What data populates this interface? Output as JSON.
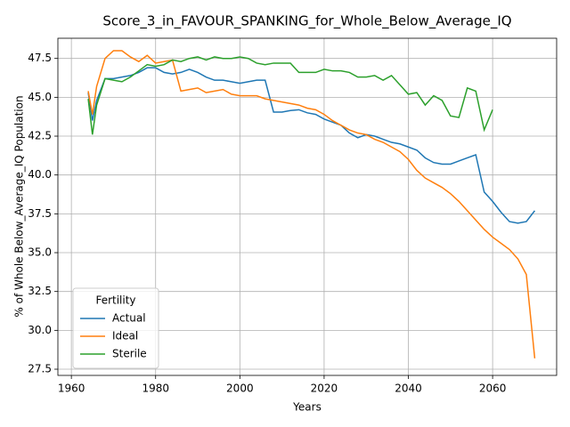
{
  "chart_data": {
    "type": "line",
    "title": "Score_3_in_FAVOUR_SPANKING_for_Whole_Below_Average_IQ",
    "xlabel": "Years",
    "ylabel": "% of Whole Below_Average_IQ Population",
    "x": [
      1964,
      1965,
      1966,
      1968,
      1970,
      1972,
      1974,
      1976,
      1978,
      1980,
      1982,
      1984,
      1986,
      1988,
      1990,
      1992,
      1994,
      1996,
      1998,
      2000,
      2002,
      2004,
      2006,
      2008,
      2010,
      2012,
      2014,
      2016,
      2018,
      2020,
      2022,
      2024,
      2026,
      2028,
      2030,
      2032,
      2034,
      2036,
      2038,
      2040,
      2042,
      2044,
      2046,
      2048,
      2050,
      2052,
      2054,
      2056,
      2058,
      2060,
      2062,
      2064,
      2066,
      2068,
      2070
    ],
    "series": [
      {
        "name": "Actual",
        "color": "#1f77b4",
        "values": [
          45.3,
          43.5,
          44.8,
          46.2,
          46.2,
          46.3,
          46.4,
          46.6,
          46.9,
          46.9,
          46.6,
          46.5,
          46.6,
          46.8,
          46.6,
          46.3,
          46.1,
          46.1,
          46.0,
          45.9,
          46.0,
          46.1,
          46.1,
          44.05,
          44.05,
          44.15,
          44.2,
          44.0,
          43.9,
          43.6,
          43.4,
          43.2,
          42.7,
          42.4,
          42.6,
          42.5,
          42.3,
          42.1,
          42.0,
          41.8,
          41.6,
          41.1,
          40.8,
          40.7,
          40.7,
          40.9,
          41.1,
          41.3,
          38.9,
          38.3,
          37.6,
          37.0,
          36.9,
          37.0,
          37.7
        ]
      },
      {
        "name": "Ideal",
        "color": "#ff7f0e",
        "values": [
          45.4,
          43.9,
          45.7,
          47.5,
          48.0,
          48.0,
          47.6,
          47.3,
          47.7,
          47.2,
          47.3,
          47.4,
          45.4,
          45.5,
          45.6,
          45.3,
          45.4,
          45.5,
          45.2,
          45.1,
          45.1,
          45.1,
          44.9,
          44.8,
          44.7,
          44.6,
          44.5,
          44.3,
          44.2,
          43.9,
          43.5,
          43.2,
          42.9,
          42.7,
          42.6,
          42.3,
          42.1,
          41.8,
          41.5,
          41.0,
          40.3,
          39.8,
          39.5,
          39.2,
          38.8,
          38.3,
          37.7,
          37.1,
          36.5,
          36.0,
          35.6,
          35.2,
          34.6,
          33.6,
          28.2
        ]
      },
      {
        "name": "Sterile",
        "color": "#2ca02c",
        "values": [
          44.9,
          42.6,
          44.5,
          46.2,
          46.1,
          46.0,
          46.3,
          46.7,
          47.1,
          47.0,
          47.1,
          47.4,
          47.3,
          47.5,
          47.6,
          47.4,
          47.6,
          47.5,
          47.5,
          47.6,
          47.5,
          47.2,
          47.1,
          47.2,
          47.2,
          47.2,
          46.6,
          46.6,
          46.6,
          46.8,
          46.7,
          46.7,
          46.6,
          46.3,
          46.3,
          46.4,
          46.1,
          46.4,
          45.8,
          45.2,
          45.3,
          44.5,
          45.1,
          44.8,
          43.8,
          43.7,
          45.6,
          45.4,
          42.9,
          44.2,
          null,
          null,
          null,
          null,
          null
        ]
      }
    ],
    "xlim": [
      1956.8,
      2075.2
    ],
    "ylim": [
      27.1,
      48.8
    ],
    "xticks": [
      1960,
      1980,
      2000,
      2020,
      2040,
      2060
    ],
    "yticks": [
      27.5,
      {
        "value": 30,
        "label": "30.0"
      },
      32.5,
      {
        "value": 35,
        "label": "35.0"
      },
      37.5,
      {
        "value": 40,
        "label": "40.0"
      },
      42.5,
      {
        "value": 45,
        "label": "45.0"
      },
      47.5
    ],
    "grid": true,
    "legend": "lower left",
    "legend_title": "Fertility"
  }
}
